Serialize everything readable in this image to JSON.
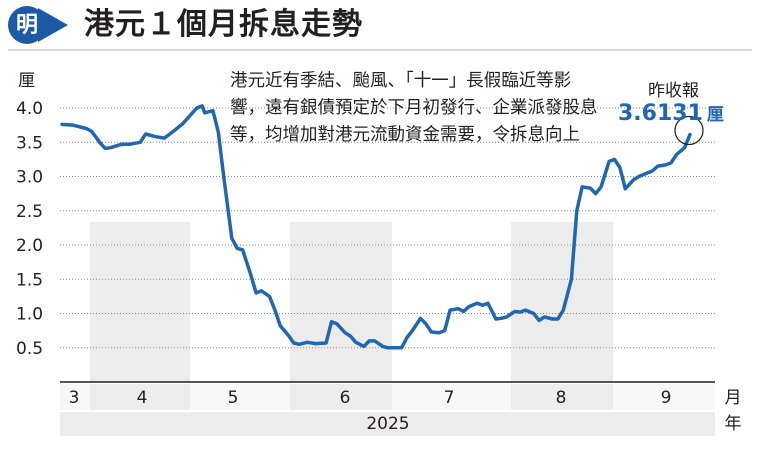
{
  "header": {
    "logo_glyph": "明",
    "title": "港元１個月拆息走勢"
  },
  "annotation": "港元近有季結、颱風、「十一」長假臨近等影響，遠有銀債預定於下月初發行、企業派發股息等，均增加對港元流動資金需要，令拆息向上",
  "latest": {
    "label": "昨收報",
    "value": "3.6131",
    "unit": "厘"
  },
  "colors": {
    "line": "#1f67b1",
    "band": "#ececec",
    "accent": "#1f67b1"
  },
  "chart_data": {
    "type": "line",
    "ylabel": "厘",
    "xlabel_unit": "月",
    "year_unit": "年",
    "year": "2025",
    "ylim": [
      0.0,
      4.0
    ],
    "yticks": [
      0.5,
      1.0,
      1.5,
      2.0,
      2.5,
      3.0,
      3.5,
      4.0
    ],
    "grid": true,
    "month_labels": [
      "3",
      "4",
      "5",
      "6",
      "7",
      "8",
      "9"
    ],
    "series": [
      {
        "points": [
          [
            "2025-03-03",
            3.76
          ],
          [
            "2025-03-07",
            3.75
          ],
          [
            "2025-03-12",
            3.7
          ],
          [
            "2025-03-14",
            3.66
          ],
          [
            "2025-03-17",
            3.5
          ],
          [
            "2025-03-19",
            3.41
          ],
          [
            "2025-03-21",
            3.42
          ],
          [
            "2025-03-25",
            3.47
          ],
          [
            "2025-03-28",
            3.47
          ],
          [
            "2025-04-01",
            3.5
          ],
          [
            "2025-04-03",
            3.62
          ],
          [
            "2025-04-07",
            3.58
          ],
          [
            "2025-04-10",
            3.56
          ],
          [
            "2025-04-14",
            3.68
          ],
          [
            "2025-04-17",
            3.78
          ],
          [
            "2025-04-22",
            4.0
          ],
          [
            "2025-04-24",
            4.03
          ],
          [
            "2025-04-25",
            3.93
          ],
          [
            "2025-04-28",
            3.96
          ],
          [
            "2025-04-30",
            3.65
          ],
          [
            "2025-05-02",
            3.0
          ],
          [
            "2025-05-05",
            2.1
          ],
          [
            "2025-05-07",
            1.95
          ],
          [
            "2025-05-09",
            1.93
          ],
          [
            "2025-05-12",
            1.57
          ],
          [
            "2025-05-14",
            1.3
          ],
          [
            "2025-05-16",
            1.33
          ],
          [
            "2025-05-19",
            1.25
          ],
          [
            "2025-05-21",
            1.05
          ],
          [
            "2025-05-23",
            0.82
          ],
          [
            "2025-05-26",
            0.68
          ],
          [
            "2025-05-28",
            0.57
          ],
          [
            "2025-05-30",
            0.55
          ],
          [
            "2025-06-02",
            0.58
          ],
          [
            "2025-06-05",
            0.56
          ],
          [
            "2025-06-09",
            0.57
          ],
          [
            "2025-06-11",
            0.88
          ],
          [
            "2025-06-13",
            0.85
          ],
          [
            "2025-06-16",
            0.72
          ],
          [
            "2025-06-18",
            0.67
          ],
          [
            "2025-06-20",
            0.58
          ],
          [
            "2025-06-23",
            0.52
          ],
          [
            "2025-06-25",
            0.6
          ],
          [
            "2025-06-27",
            0.6
          ],
          [
            "2025-06-30",
            0.52
          ],
          [
            "2025-07-02",
            0.5
          ],
          [
            "2025-07-07",
            0.5
          ],
          [
            "2025-07-09",
            0.65
          ],
          [
            "2025-07-11",
            0.75
          ],
          [
            "2025-07-14",
            0.93
          ],
          [
            "2025-07-16",
            0.85
          ],
          [
            "2025-07-18",
            0.73
          ],
          [
            "2025-07-21",
            0.72
          ],
          [
            "2025-07-23",
            0.75
          ],
          [
            "2025-07-25",
            1.05
          ],
          [
            "2025-07-28",
            1.07
          ],
          [
            "2025-07-30",
            1.03
          ],
          [
            "2025-08-01",
            1.1
          ],
          [
            "2025-08-04",
            1.15
          ],
          [
            "2025-08-06",
            1.12
          ],
          [
            "2025-08-08",
            1.15
          ],
          [
            "2025-08-11",
            0.92
          ],
          [
            "2025-08-13",
            0.93
          ],
          [
            "2025-08-15",
            0.95
          ],
          [
            "2025-08-18",
            1.03
          ],
          [
            "2025-08-20",
            1.02
          ],
          [
            "2025-08-22",
            1.05
          ],
          [
            "2025-08-25",
            1.0
          ],
          [
            "2025-08-27",
            0.9
          ],
          [
            "2025-08-29",
            0.95
          ],
          [
            "2025-09-01",
            0.92
          ],
          [
            "2025-09-03",
            0.92
          ],
          [
            "2025-09-05",
            1.05
          ],
          [
            "2025-09-08",
            1.5
          ],
          [
            "2025-09-10",
            2.5
          ],
          [
            "2025-09-12",
            2.85
          ],
          [
            "2025-09-15",
            2.83
          ],
          [
            "2025-09-17",
            2.75
          ],
          [
            "2025-09-19",
            2.85
          ],
          [
            "2025-09-22",
            3.22
          ],
          [
            "2025-09-24",
            3.25
          ],
          [
            "2025-09-26",
            3.13
          ],
          [
            "2025-09-28",
            2.82
          ],
          [
            "2025-10-01",
            2.95
          ],
          [
            "2025-10-03",
            3.0
          ],
          [
            "2025-10-06",
            3.05
          ],
          [
            "2025-10-08",
            3.08
          ],
          [
            "2025-10-10",
            3.15
          ],
          [
            "2025-10-13",
            3.17
          ],
          [
            "2025-10-15",
            3.2
          ],
          [
            "2025-10-17",
            3.32
          ],
          [
            "2025-10-20",
            3.42
          ],
          [
            "2025-10-22",
            3.6131
          ]
        ]
      }
    ]
  }
}
